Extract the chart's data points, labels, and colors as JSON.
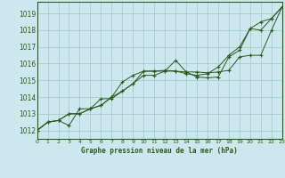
{
  "bg_color": "#cce8ee",
  "plot_bg_color": "#cce8ee",
  "grid_color": "#aacccc",
  "line_color": "#2d5a1b",
  "marker_color": "#2d5a1b",
  "xlabel": "Graphe pression niveau de la mer (hPa)",
  "xlim": [
    0,
    23
  ],
  "ylim": [
    1011.5,
    1019.7
  ],
  "yticks": [
    1012,
    1013,
    1014,
    1015,
    1016,
    1017,
    1018,
    1019
  ],
  "xticks": [
    0,
    1,
    2,
    3,
    4,
    5,
    6,
    7,
    8,
    9,
    10,
    11,
    12,
    13,
    14,
    15,
    16,
    17,
    18,
    19,
    20,
    21,
    22,
    23
  ],
  "series": [
    [
      1012.0,
      1012.5,
      1012.6,
      1012.3,
      1013.3,
      1013.3,
      1013.5,
      1014.0,
      1014.9,
      1015.3,
      1015.55,
      1015.55,
      1015.55,
      1015.55,
      1015.5,
      1015.5,
      1015.45,
      1015.5,
      1015.6,
      1016.4,
      1016.5,
      1016.5,
      1018.0,
      1019.4
    ],
    [
      1012.0,
      1012.5,
      1012.6,
      1013.0,
      1013.0,
      1013.3,
      1013.5,
      1014.0,
      1014.35,
      1014.8,
      1015.3,
      1015.3,
      1015.55,
      1016.2,
      1015.5,
      1015.2,
      1015.15,
      1015.2,
      1016.4,
      1016.8,
      1018.1,
      1018.0,
      1018.7,
      1019.4
    ],
    [
      1012.0,
      1012.5,
      1012.6,
      1013.0,
      1013.0,
      1013.3,
      1013.9,
      1013.9,
      1014.35,
      1014.8,
      1015.55,
      1015.55,
      1015.6,
      1015.55,
      1015.4,
      1015.3,
      1015.4,
      1015.8,
      1016.5,
      1017.0,
      1018.1,
      1018.5,
      1018.7,
      1019.4
    ]
  ]
}
